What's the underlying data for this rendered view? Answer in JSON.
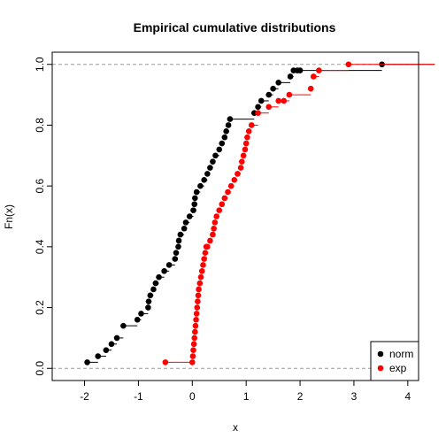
{
  "chart_data": {
    "type": "scatter",
    "title": "Empirical cumulative distributions",
    "xlabel": "x",
    "ylabel": "Fn(x)",
    "xlim": [
      -2.6,
      4.2
    ],
    "ylim": [
      -0.04,
      1.04
    ],
    "xticks": [
      "-2",
      "-1",
      "0",
      "1",
      "2",
      "3",
      "4"
    ],
    "yticks": [
      "0.0",
      "0.2",
      "0.4",
      "0.6",
      "0.8",
      "1.0"
    ],
    "reference_lines_y": [
      0,
      1
    ],
    "legend": {
      "position": "bottom-right",
      "entries": [
        "norm",
        "exp"
      ]
    },
    "series": [
      {
        "name": "norm",
        "color": "#000000",
        "x": [
          -1.95,
          -1.75,
          -1.6,
          -1.5,
          -1.4,
          -1.28,
          -1.02,
          -0.95,
          -0.82,
          -0.81,
          -0.78,
          -0.72,
          -0.68,
          -0.62,
          -0.52,
          -0.43,
          -0.32,
          -0.3,
          -0.26,
          -0.25,
          -0.22,
          -0.15,
          -0.12,
          -0.05,
          0.02,
          0.04,
          0.05,
          0.08,
          0.15,
          0.22,
          0.28,
          0.33,
          0.38,
          0.43,
          0.5,
          0.55,
          0.6,
          0.63,
          0.67,
          0.7,
          1.15,
          1.22,
          1.28,
          1.42,
          1.5,
          1.6,
          1.82,
          1.88,
          1.95,
          2.0,
          3.52
        ],
        "y": [
          0.02,
          0.04,
          0.06,
          0.08,
          0.1,
          0.14,
          0.16,
          0.18,
          0.2,
          0.22,
          0.24,
          0.26,
          0.28,
          0.3,
          0.32,
          0.34,
          0.36,
          0.38,
          0.4,
          0.42,
          0.44,
          0.46,
          0.48,
          0.5,
          0.52,
          0.54,
          0.56,
          0.58,
          0.6,
          0.62,
          0.64,
          0.66,
          0.68,
          0.7,
          0.72,
          0.74,
          0.76,
          0.78,
          0.8,
          0.82,
          0.84,
          0.86,
          0.88,
          0.9,
          0.92,
          0.94,
          0.96,
          0.98,
          0.98,
          0.98,
          1.0
        ]
      },
      {
        "name": "exp",
        "color": "#ff0000",
        "x": [
          -0.5,
          0.0,
          0.01,
          0.02,
          0.03,
          0.04,
          0.05,
          0.06,
          0.07,
          0.08,
          0.09,
          0.1,
          0.11,
          0.12,
          0.14,
          0.16,
          0.18,
          0.2,
          0.22,
          0.24,
          0.26,
          0.28,
          0.33,
          0.38,
          0.4,
          0.42,
          0.45,
          0.5,
          0.55,
          0.6,
          0.66,
          0.72,
          0.78,
          0.84,
          0.9,
          0.92,
          0.95,
          0.98,
          1.0,
          1.02,
          1.05,
          1.1,
          1.22,
          1.42,
          1.6,
          1.7,
          1.8,
          2.2,
          2.25,
          2.35,
          2.9
        ],
        "y": [
          0.02,
          0.02,
          0.04,
          0.06,
          0.08,
          0.1,
          0.12,
          0.14,
          0.16,
          0.18,
          0.2,
          0.22,
          0.24,
          0.26,
          0.28,
          0.3,
          0.32,
          0.34,
          0.36,
          0.38,
          0.4,
          0.4,
          0.42,
          0.44,
          0.46,
          0.48,
          0.5,
          0.52,
          0.54,
          0.56,
          0.58,
          0.6,
          0.62,
          0.64,
          0.66,
          0.68,
          0.7,
          0.72,
          0.74,
          0.76,
          0.78,
          0.8,
          0.84,
          0.86,
          0.88,
          0.88,
          0.9,
          0.92,
          0.96,
          0.98,
          1.0
        ]
      }
    ]
  }
}
